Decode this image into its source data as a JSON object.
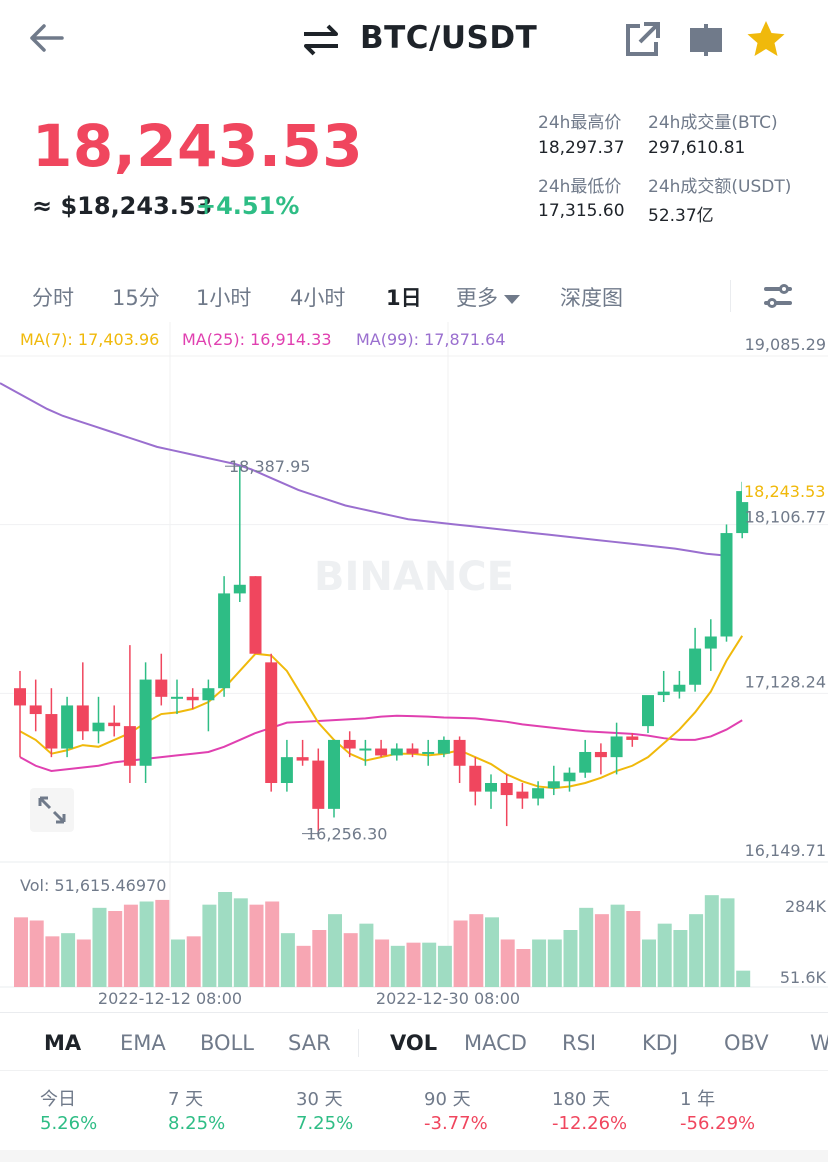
{
  "header": {
    "pair": "BTC/USDT",
    "back_icon": "arrow-left-icon",
    "swap_icon": "swap-arrows-icon",
    "share_icon": "share-icon",
    "pip_icon": "picture-in-picture-icon",
    "favorite_icon": "star-icon",
    "favorite_color": "#f0b90b"
  },
  "price": {
    "last": "18,243.53",
    "usd": "≈ $18,243.53",
    "change": "+4.51%",
    "up_color": "#2ebd85",
    "down_color": "#f0465e"
  },
  "stats": {
    "high_label": "24h最高价",
    "high_value": "18,297.37",
    "vol_btc_label": "24h成交量(BTC)",
    "vol_btc_value": "297,610.81",
    "low_label": "24h最低价",
    "low_value": "17,315.60",
    "vol_usdt_label": "24h成交额(USDT)",
    "vol_usdt_value": "52.37亿"
  },
  "intervals": {
    "items": [
      "分时",
      "15分",
      "1小时",
      "4小时",
      "1日"
    ],
    "more": "更多",
    "depth": "深度图",
    "active": "1日",
    "settings_icon": "sliders-icon"
  },
  "chart": {
    "ma7_label": "MA(7): 17,403.96",
    "ma25_label": "MA(25): 16,914.33",
    "ma99_label": "MA(99): 17,871.64",
    "ma7_color": "#f0b90b",
    "ma25_color": "#e040b0",
    "ma99_color": "#9a6fcf",
    "watermark": "BINANCE",
    "axis_ticks": [
      "19,085.29",
      "18,106.77",
      "17,128.24",
      "16,149.71"
    ],
    "current_price_tag": "18,243.53",
    "high_marker": "18,387.95",
    "low_marker": "16,256.30",
    "vol_label": "Vol: 51,615.46970",
    "vol_ticks": [
      "284K",
      "51.6K"
    ],
    "date_labels": [
      "2022-12-12 08:00",
      "2022-12-30 08:00"
    ],
    "expand_icon": "expand-arrows-icon"
  },
  "chart_data": {
    "type": "candlestick",
    "y_range": [
      16149.71,
      19085.29
    ],
    "candles": [
      [
        17100,
        17200,
        16700,
        17000
      ],
      [
        17000,
        17150,
        16850,
        16950
      ],
      [
        16950,
        17100,
        16700,
        16750
      ],
      [
        16750,
        17050,
        16700,
        17000
      ],
      [
        17000,
        17250,
        16800,
        16850
      ],
      [
        16850,
        17050,
        16780,
        16900
      ],
      [
        16900,
        17000,
        16820,
        16880
      ],
      [
        16880,
        17350,
        16550,
        16650
      ],
      [
        16650,
        17250,
        16550,
        17150
      ],
      [
        17150,
        17300,
        17000,
        17050
      ],
      [
        17050,
        17150,
        16950,
        17050
      ],
      [
        17050,
        17100,
        16980,
        17030
      ],
      [
        17030,
        17150,
        16850,
        17100
      ],
      [
        17100,
        17750,
        17050,
        17650
      ],
      [
        17650,
        18387.95,
        17600,
        17700
      ],
      [
        17750,
        17750,
        17300,
        17300
      ],
      [
        17250,
        17300,
        16500,
        16550
      ],
      [
        16550,
        16800,
        16500,
        16700
      ],
      [
        16700,
        16800,
        16650,
        16680
      ],
      [
        16680,
        16750,
        16256.3,
        16400
      ],
      [
        16400,
        16800,
        16350,
        16800
      ],
      [
        16800,
        16850,
        16700,
        16750
      ],
      [
        16740,
        16800,
        16650,
        16750
      ],
      [
        16750,
        16800,
        16700,
        16710
      ],
      [
        16710,
        16780,
        16680,
        16750
      ],
      [
        16750,
        16780,
        16700,
        16720
      ],
      [
        16720,
        16800,
        16650,
        16730
      ],
      [
        16720,
        16820,
        16700,
        16800
      ],
      [
        16800,
        16820,
        16550,
        16650
      ],
      [
        16650,
        16700,
        16420,
        16500
      ],
      [
        16500,
        16600,
        16400,
        16550
      ],
      [
        16550,
        16600,
        16300,
        16480
      ],
      [
        16500,
        16550,
        16400,
        16460
      ],
      [
        16460,
        16560,
        16420,
        16520
      ],
      [
        16520,
        16650,
        16480,
        16560
      ],
      [
        16560,
        16640,
        16500,
        16610
      ],
      [
        16610,
        16800,
        16580,
        16730
      ],
      [
        16730,
        16780,
        16600,
        16700
      ],
      [
        16700,
        16900,
        16600,
        16820
      ],
      [
        16820,
        16840,
        16760,
        16800
      ],
      [
        16880,
        17050,
        16840,
        17060
      ],
      [
        17060,
        17200,
        17020,
        17080
      ],
      [
        17080,
        17200,
        17040,
        17120
      ],
      [
        17120,
        17450,
        17080,
        17330
      ],
      [
        17330,
        17500,
        17200,
        17400
      ],
      [
        17400,
        18050,
        17370,
        18000
      ],
      [
        18000,
        18297.37,
        17970,
        18243.53
      ]
    ],
    "ma7": [
      16850,
      16800,
      16720,
      16740,
      16770,
      16760,
      16800,
      16840,
      16900,
      16950,
      16960,
      16980,
      17020,
      17100,
      17200,
      17300,
      17290,
      17200,
      17050,
      16900,
      16800,
      16720,
      16680,
      16700,
      16720,
      16720,
      16710,
      16720,
      16740,
      16700,
      16660,
      16600,
      16560,
      16530,
      16520,
      16530,
      16550,
      16580,
      16620,
      16650,
      16700,
      16780,
      16860,
      16960,
      17080,
      17260,
      17403.96
    ],
    "ma25": [
      16700,
      16650,
      16620,
      16630,
      16640,
      16650,
      16670,
      16680,
      16690,
      16700,
      16710,
      16720,
      16730,
      16760,
      16800,
      16840,
      16870,
      16900,
      16905,
      16910,
      16915,
      16920,
      16925,
      16935,
      16940,
      16938,
      16935,
      16930,
      16928,
      16925,
      16915,
      16905,
      16890,
      16880,
      16870,
      16860,
      16850,
      16845,
      16840,
      16835,
      16825,
      16810,
      16800,
      16800,
      16820,
      16860,
      16914.33
    ],
    "ma99": [
      18870,
      18820,
      18770,
      18720,
      18680,
      18650,
      18620,
      18590,
      18560,
      18530,
      18500,
      18480,
      18460,
      18440,
      18420,
      18400,
      18370,
      18330,
      18290,
      18250,
      18220,
      18190,
      18160,
      18140,
      18120,
      18100,
      18080,
      18070,
      18060,
      18050,
      18040,
      18030,
      18020,
      18010,
      18000,
      17990,
      17980,
      17970,
      17960,
      17950,
      17940,
      17930,
      17920,
      17910,
      17895,
      17880,
      17871.64
    ],
    "volume": [
      220,
      210,
      160,
      170,
      150,
      250,
      240,
      260,
      270,
      275,
      150,
      160,
      260,
      300,
      280,
      260,
      270,
      170,
      130,
      180,
      230,
      170,
      200,
      150,
      130,
      140,
      140,
      130,
      210,
      230,
      220,
      150,
      120,
      150,
      150,
      180,
      250,
      230,
      260,
      240,
      150,
      200,
      180,
      230,
      290,
      280,
      51.6
    ],
    "vol_range": [
      0,
      300
    ]
  },
  "indicators": {
    "main": [
      "MA",
      "EMA",
      "BOLL",
      "SAR"
    ],
    "sub": [
      "VOL",
      "MACD",
      "RSI",
      "KDJ",
      "OBV",
      "W"
    ],
    "active_main": "MA",
    "active_sub": "VOL"
  },
  "performance": [
    {
      "label": "今日",
      "value": "5.26%",
      "dir": "pos"
    },
    {
      "label": "7 天",
      "value": "8.25%",
      "dir": "pos"
    },
    {
      "label": "30 天",
      "value": "7.25%",
      "dir": "pos"
    },
    {
      "label": "90 天",
      "value": "-3.77%",
      "dir": "neg"
    },
    {
      "label": "180 天",
      "value": "-12.26%",
      "dir": "neg"
    },
    {
      "label": "1 年",
      "value": "-56.29%",
      "dir": "neg"
    }
  ]
}
